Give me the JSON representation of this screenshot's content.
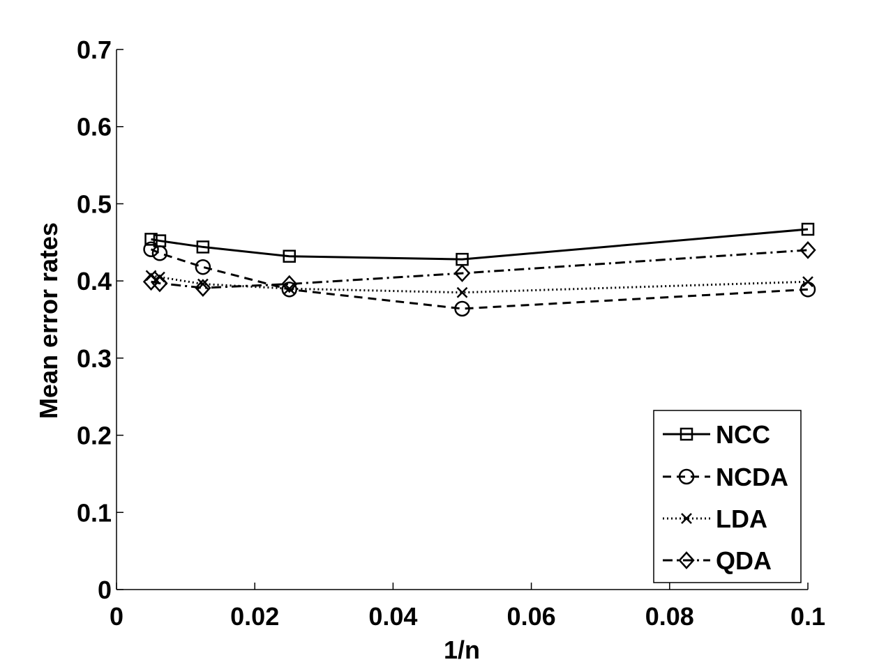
{
  "chart_data": {
    "type": "line",
    "title": "",
    "xlabel": "1/n",
    "ylabel": "Mean error rates",
    "xlim": [
      0,
      0.1
    ],
    "ylim": [
      0,
      0.7
    ],
    "xticks": [
      0,
      0.02,
      0.04,
      0.06,
      0.08,
      0.1
    ],
    "xtick_labels": [
      "0",
      "0.02",
      "0.04",
      "0.06",
      "0.08",
      "0.1"
    ],
    "yticks": [
      0,
      0.1,
      0.2,
      0.3,
      0.4,
      0.5,
      0.6,
      0.7
    ],
    "ytick_labels": [
      "0",
      "0.1",
      "0.2",
      "0.3",
      "0.4",
      "0.5",
      "0.6",
      "0.7"
    ],
    "grid": false,
    "legend_position": "bottom-right",
    "x": [
      0.005,
      0.00625,
      0.0125,
      0.025,
      0.05,
      0.1
    ],
    "series": [
      {
        "name": "NCC",
        "marker": "square",
        "line_style": "solid",
        "values": [
          0.454,
          0.452,
          0.444,
          0.432,
          0.428,
          0.467
        ]
      },
      {
        "name": "NCDA",
        "marker": "circle",
        "line_style": "dashed",
        "values": [
          0.441,
          0.436,
          0.418,
          0.389,
          0.364,
          0.389
        ]
      },
      {
        "name": "LDA",
        "marker": "x",
        "line_style": "dotted",
        "values": [
          0.407,
          0.405,
          0.396,
          0.39,
          0.385,
          0.399
        ]
      },
      {
        "name": "QDA",
        "marker": "diamond",
        "line_style": "dashdot",
        "values": [
          0.399,
          0.397,
          0.391,
          0.396,
          0.41,
          0.44
        ]
      }
    ]
  }
}
